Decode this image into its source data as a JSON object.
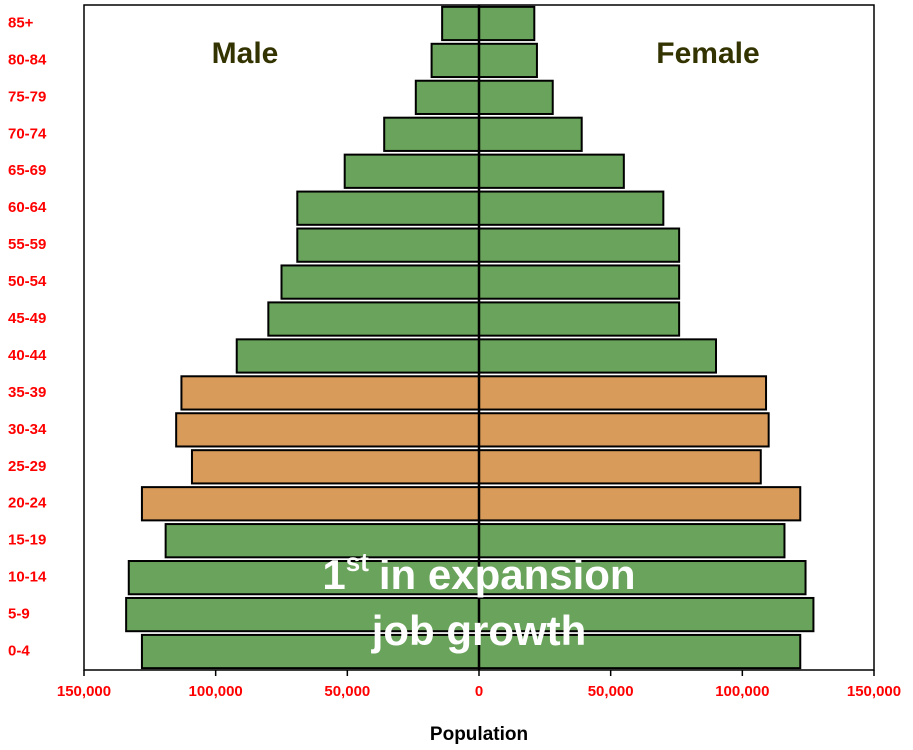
{
  "chart_data": {
    "type": "pyramid",
    "categories": [
      "85+",
      "80-84",
      "75-79",
      "70-74",
      "65-69",
      "60-64",
      "55-59",
      "50-54",
      "45-49",
      "40-44",
      "35-39",
      "30-34",
      "25-29",
      "20-24",
      "15-19",
      "10-14",
      "5-9",
      "0-4"
    ],
    "series": [
      {
        "name": "Male",
        "side": "left",
        "values": [
          14000,
          18000,
          24000,
          36000,
          51000,
          69000,
          69000,
          75000,
          80000,
          92000,
          113000,
          115000,
          109000,
          128000,
          119000,
          133000,
          134000,
          128000
        ],
        "colors": [
          "#6aa35b",
          "#6aa35b",
          "#6aa35b",
          "#6aa35b",
          "#6aa35b",
          "#6aa35b",
          "#6aa35b",
          "#6aa35b",
          "#6aa35b",
          "#6aa35b",
          "#d89b5a",
          "#d89b5a",
          "#d89b5a",
          "#d89b5a",
          "#6aa35b",
          "#6aa35b",
          "#6aa35b",
          "#6aa35b"
        ]
      },
      {
        "name": "Female",
        "side": "right",
        "values": [
          21000,
          22000,
          28000,
          39000,
          55000,
          70000,
          76000,
          76000,
          76000,
          90000,
          109000,
          110000,
          107000,
          122000,
          116000,
          124000,
          127000,
          122000
        ],
        "colors": [
          "#6aa35b",
          "#6aa35b",
          "#6aa35b",
          "#6aa35b",
          "#6aa35b",
          "#6aa35b",
          "#6aa35b",
          "#6aa35b",
          "#6aa35b",
          "#6aa35b",
          "#d89b5a",
          "#d89b5a",
          "#d89b5a",
          "#d89b5a",
          "#6aa35b",
          "#6aa35b",
          "#6aa35b",
          "#6aa35b"
        ]
      }
    ],
    "xlabel": "Population",
    "xlim": [
      -150000,
      150000
    ],
    "xticks": [
      {
        "value": -150000,
        "label": "150,000"
      },
      {
        "value": -100000,
        "label": "100,000"
      },
      {
        "value": -50000,
        "label": "50,000"
      },
      0,
      {
        "value": 50000,
        "label": "50,000"
      },
      {
        "value": 100000,
        "label": "100,000"
      },
      {
        "value": 150000,
        "label": "150,000"
      }
    ],
    "annotation": {
      "base": "1",
      "sup": "st",
      "rest": "in expansion",
      "line2": "job growth"
    }
  }
}
